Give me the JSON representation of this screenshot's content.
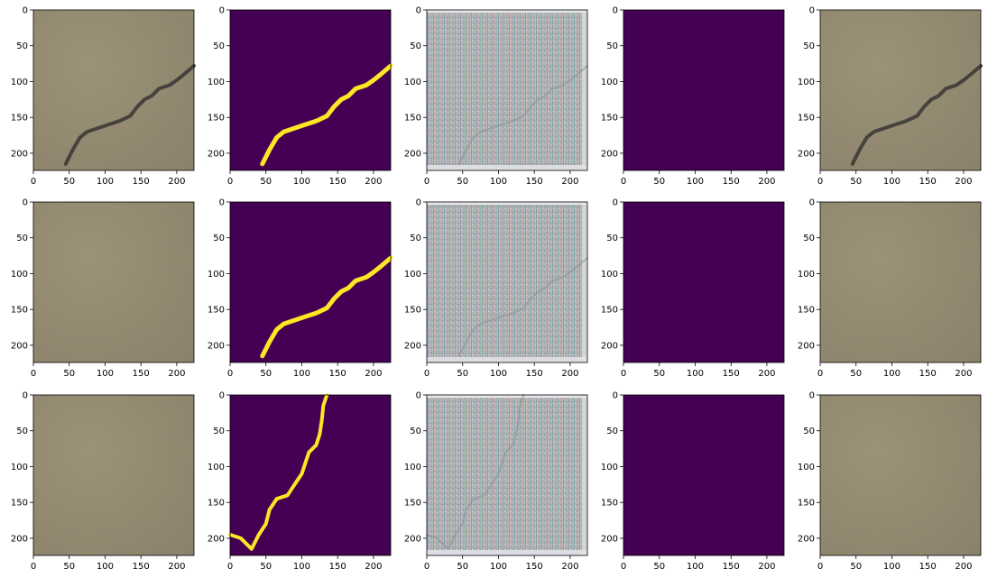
{
  "figure": {
    "rows": 3,
    "cols": 5,
    "x_ticks": [
      "0",
      "50",
      "100",
      "150",
      "200"
    ],
    "y_ticks": [
      "0",
      "50",
      "100",
      "150",
      "200"
    ],
    "x_tick_values": [
      0,
      50,
      100,
      150,
      200
    ],
    "y_tick_values": [
      0,
      50,
      100,
      150,
      200
    ],
    "extent": [
      0,
      224
    ],
    "colors": {
      "concrete": "#958b73",
      "mask_background": "#440154",
      "mask_crack": "#fde725",
      "prediction_background": "#440154",
      "crack_dark": "#3d3a36"
    },
    "panels": [
      [
        {
          "kind": "photo",
          "crack": "diagonal"
        },
        {
          "kind": "mask",
          "crack": "diagonal"
        },
        {
          "kind": "noise",
          "crack": "diagonal"
        },
        {
          "kind": "blank"
        },
        {
          "kind": "photo",
          "crack": "diagonal"
        }
      ],
      [
        {
          "kind": "photo",
          "crack": "none"
        },
        {
          "kind": "mask",
          "crack": "diagonal"
        },
        {
          "kind": "noise",
          "crack": "diagonal"
        },
        {
          "kind": "blank"
        },
        {
          "kind": "photo",
          "crack": "none"
        }
      ],
      [
        {
          "kind": "photo",
          "crack": "none"
        },
        {
          "kind": "mask",
          "crack": "vertical"
        },
        {
          "kind": "noise",
          "crack": "vertical"
        },
        {
          "kind": "blank"
        },
        {
          "kind": "photo",
          "crack": "none"
        }
      ]
    ],
    "cracks": {
      "diagonal": [
        [
          45,
          215
        ],
        [
          55,
          195
        ],
        [
          65,
          178
        ],
        [
          75,
          170
        ],
        [
          90,
          165
        ],
        [
          105,
          160
        ],
        [
          120,
          155
        ],
        [
          135,
          148
        ],
        [
          145,
          135
        ],
        [
          155,
          125
        ],
        [
          165,
          120
        ],
        [
          175,
          110
        ],
        [
          190,
          105
        ],
        [
          200,
          98
        ],
        [
          210,
          90
        ],
        [
          224,
          78
        ]
      ],
      "vertical": [
        [
          0,
          195
        ],
        [
          15,
          200
        ],
        [
          30,
          215
        ],
        [
          40,
          195
        ],
        [
          50,
          180
        ],
        [
          55,
          160
        ],
        [
          65,
          145
        ],
        [
          80,
          140
        ],
        [
          90,
          125
        ],
        [
          100,
          110
        ],
        [
          105,
          95
        ],
        [
          110,
          80
        ],
        [
          120,
          70
        ],
        [
          125,
          55
        ],
        [
          128,
          35
        ],
        [
          130,
          15
        ],
        [
          135,
          0
        ]
      ]
    }
  }
}
